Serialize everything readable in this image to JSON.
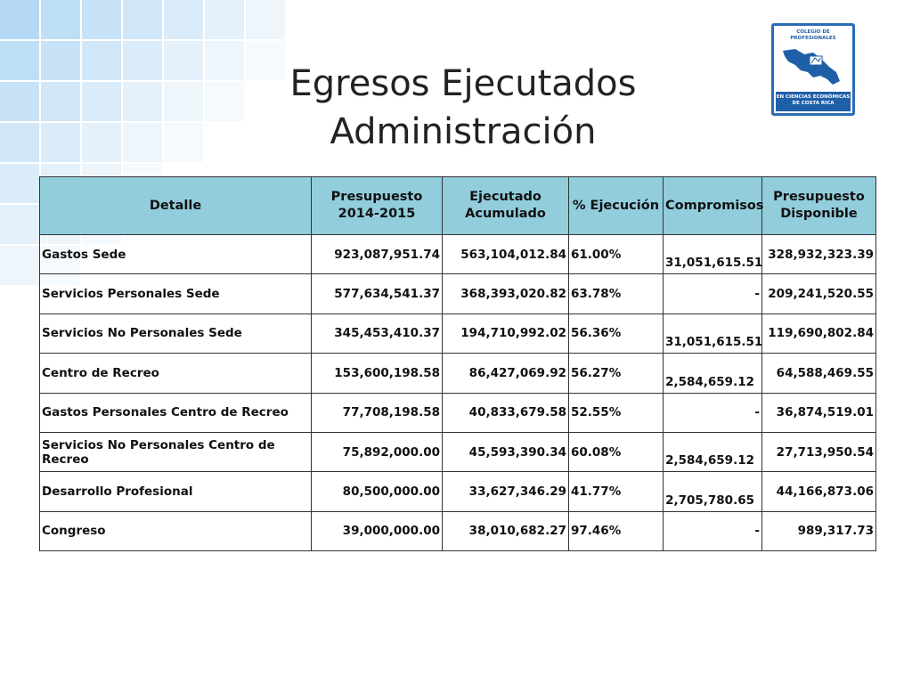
{
  "title": {
    "line1": "Egresos Ejecutados",
    "line2": "Administración"
  },
  "logo": {
    "top_text": "COLEGIO DE PROFESIONALES",
    "bottom_text": "EN CIENCIAS ECONÓMICAS DE COSTA RICA",
    "icon": "costa-rica-map-icon",
    "color": "#1f5fa8"
  },
  "table": {
    "header_color": "#92cddc",
    "headers": [
      "Detalle",
      "Presupuesto 2014-2015",
      "Ejecutado Acumulado",
      "% Ejecución",
      "Compromisos",
      "Presupuesto Disponible"
    ],
    "rows": [
      {
        "detalle": "Gastos Sede",
        "presupuesto": "923,087,951.74",
        "ejecutado": "563,104,012.84",
        "pct": "61.00%",
        "compromisos": "31,051,615.51",
        "disponible": "328,932,323.39"
      },
      {
        "detalle": "Servicios Personales Sede",
        "presupuesto": "577,634,541.37",
        "ejecutado": "368,393,020.82",
        "pct": "63.78%",
        "compromisos": "-",
        "disponible": "209,241,520.55"
      },
      {
        "detalle": "Servicios No Personales Sede",
        "presupuesto": "345,453,410.37",
        "ejecutado": "194,710,992.02",
        "pct": "56.36%",
        "compromisos": "31,051,615.51",
        "disponible": "119,690,802.84"
      },
      {
        "detalle": "Centro de Recreo",
        "presupuesto": "153,600,198.58",
        "ejecutado": "86,427,069.92",
        "pct": "56.27%",
        "compromisos": "2,584,659.12",
        "disponible": "64,588,469.55"
      },
      {
        "detalle": "Gastos Personales Centro de Recreo",
        "presupuesto": "77,708,198.58",
        "ejecutado": "40,833,679.58",
        "pct": "52.55%",
        "compromisos": "-",
        "disponible": "36,874,519.01"
      },
      {
        "detalle": "Servicios No Personales Centro de Recreo",
        "presupuesto": "75,892,000.00",
        "ejecutado": "45,593,390.34",
        "pct": "60.08%",
        "compromisos": "2,584,659.12",
        "disponible": "27,713,950.54"
      },
      {
        "detalle": "Desarrollo Profesional",
        "presupuesto": "80,500,000.00",
        "ejecutado": "33,627,346.29",
        "pct": "41.77%",
        "compromisos": "2,705,780.65",
        "disponible": "44,166,873.06"
      },
      {
        "detalle": "Congreso",
        "presupuesto": "39,000,000.00",
        "ejecutado": "38,010,682.27",
        "pct": "97.46%",
        "compromisos": "-",
        "disponible": "989,317.73"
      }
    ]
  }
}
